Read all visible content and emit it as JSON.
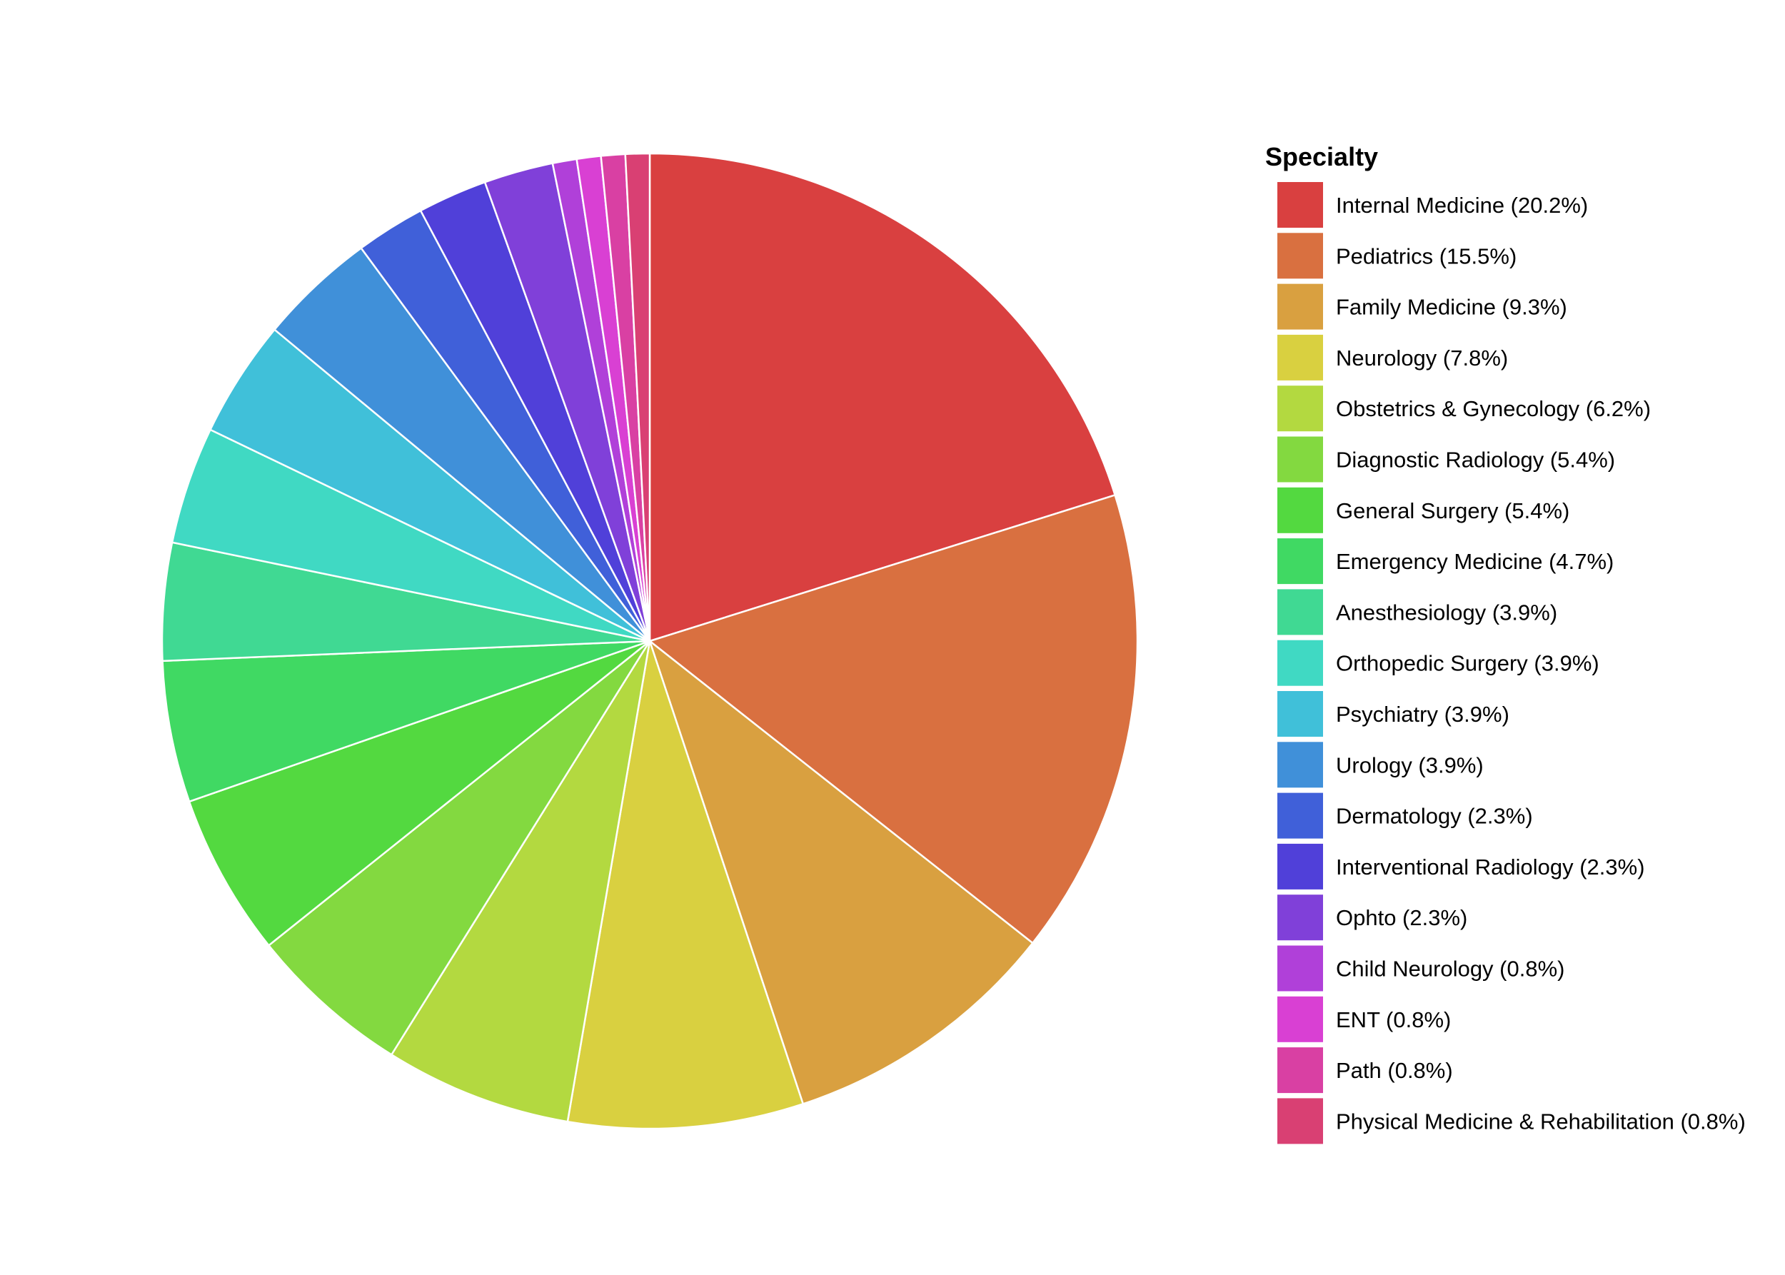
{
  "chart_data": {
    "type": "pie",
    "legend_title": "Specialty",
    "legend_position": "right",
    "start_angle": "12 o'clock",
    "direction": "clockwise",
    "slices": [
      {
        "label": "Internal Medicine",
        "value": 20.2,
        "legend": "Internal Medicine (20.2%)",
        "color": "#D94040"
      },
      {
        "label": "Pediatrics",
        "value": 15.5,
        "legend": "Pediatrics (15.5%)",
        "color": "#D97040"
      },
      {
        "label": "Family Medicine",
        "value": 9.3,
        "legend": "Family Medicine (9.3%)",
        "color": "#D9A040"
      },
      {
        "label": "Neurology",
        "value": 7.8,
        "legend": "Neurology (7.8%)",
        "color": "#D9D040"
      },
      {
        "label": "Obstetrics & Gynecology",
        "value": 6.2,
        "legend": "Obstetrics & Gynecology (6.2%)",
        "color": "#B3D940"
      },
      {
        "label": "Diagnostic Radiology",
        "value": 5.4,
        "legend": "Diagnostic Radiology (5.4%)",
        "color": "#83D940"
      },
      {
        "label": "General Surgery",
        "value": 5.4,
        "legend": "General Surgery (5.4%)",
        "color": "#53D940"
      },
      {
        "label": "Emergency Medicine",
        "value": 4.7,
        "legend": "Emergency Medicine (4.7%)",
        "color": "#40D963"
      },
      {
        "label": "Anesthesiology",
        "value": 3.9,
        "legend": "Anesthesiology (3.9%)",
        "color": "#40D993"
      },
      {
        "label": "Orthopedic Surgery",
        "value": 3.9,
        "legend": "Orthopedic Surgery (3.9%)",
        "color": "#40D9C3"
      },
      {
        "label": "Psychiatry",
        "value": 3.9,
        "legend": "Psychiatry (3.9%)",
        "color": "#40C0D9"
      },
      {
        "label": "Urology",
        "value": 3.9,
        "legend": "Urology (3.9%)",
        "color": "#4090D9"
      },
      {
        "label": "Dermatology",
        "value": 2.3,
        "legend": "Dermatology (2.3%)",
        "color": "#4060D9"
      },
      {
        "label": "Interventional Radiology",
        "value": 2.3,
        "legend": "Interventional Radiology (2.3%)",
        "color": "#5040D9"
      },
      {
        "label": "Ophto",
        "value": 2.3,
        "legend": "Ophto (2.3%)",
        "color": "#8040D9"
      },
      {
        "label": "Child Neurology",
        "value": 0.8,
        "legend": "Child Neurology (0.8%)",
        "color": "#B040D9"
      },
      {
        "label": "ENT",
        "value": 0.8,
        "legend": "ENT (0.8%)",
        "color": "#D940D3"
      },
      {
        "label": "Path",
        "value": 0.8,
        "legend": "Path (0.8%)",
        "color": "#D940A3"
      },
      {
        "label": "Physical Medicine & Rehabilitation",
        "value": 0.8,
        "legend": "Physical Medicine & Rehabilitation (0.8%)",
        "color": "#D94073"
      }
    ]
  }
}
